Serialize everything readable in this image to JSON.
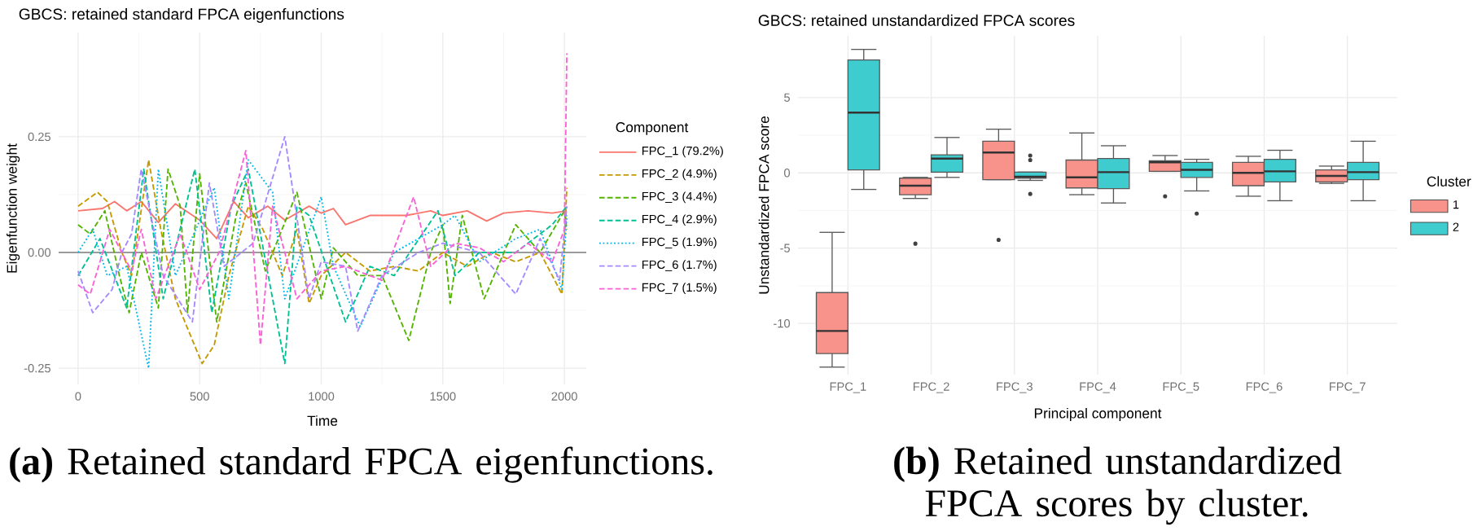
{
  "chart_data": [
    {
      "type": "line",
      "title": "GBCS: retained standard FPCA eigenfunctions",
      "xlabel": "Time",
      "ylabel": "Eigenfunction weight",
      "legend_title": "Component",
      "legend": "right",
      "grid": true,
      "xlim": [
        -80,
        2090
      ],
      "ylim": [
        -0.285,
        0.475
      ],
      "xticks": [
        0,
        500,
        1000,
        1500,
        2000
      ],
      "yticks": [
        -0.25,
        {
          "value": 0,
          "label": "0.00"
        },
        0.25
      ],
      "ref_lines": [
        {
          "axis": "y",
          "value": 0,
          "color": "#7F7F7F"
        }
      ],
      "annotations": [
        "**(a)** Retained standard FPCA eigenfunctions."
      ],
      "series": [
        {
          "name": "FPC_1 (79.2%)",
          "color": "#F8766D",
          "line_style": "solid",
          "x": [
            0,
            100,
            150,
            200,
            260,
            330,
            400,
            500,
            570,
            640,
            700,
            780,
            850,
            950,
            1000,
            1050,
            1100,
            1200,
            1350,
            1450,
            1500,
            1600,
            1680,
            1750,
            1850,
            1950,
            2010
          ],
          "values": [
            0.09,
            0.095,
            0.11,
            0.09,
            0.11,
            0.065,
            0.105,
            0.07,
            0.03,
            0.11,
            0.075,
            0.1,
            0.07,
            0.1,
            0.085,
            0.095,
            0.06,
            0.08,
            0.08,
            0.09,
            0.08,
            0.09,
            0.068,
            0.085,
            0.09,
            0.085,
            0.09
          ]
        },
        {
          "name": "FPC_2 (4.9%)",
          "color": "#C49A00",
          "line_style": "dashed",
          "x": [
            0,
            80,
            120,
            180,
            220,
            290,
            340,
            400,
            510,
            560,
            620,
            700,
            760,
            840,
            900,
            950,
            1000,
            1100,
            1200,
            1300,
            1400,
            1500,
            1600,
            1700,
            1800,
            1900,
            1990,
            2010
          ],
          "values": [
            0.1,
            0.13,
            0.11,
            0.0,
            -0.05,
            0.2,
            0.05,
            -0.1,
            -0.24,
            -0.2,
            -0.05,
            0.1,
            0.05,
            -0.05,
            0.05,
            -0.11,
            -0.05,
            0.0,
            -0.04,
            -0.03,
            -0.04,
            0.0,
            -0.03,
            0.0,
            -0.02,
            0.0,
            -0.09,
            0.14
          ]
        },
        {
          "name": "FPC_3 (4.4%)",
          "color": "#53B400",
          "line_style": "dashed",
          "x": [
            0,
            50,
            110,
            170,
            210,
            260,
            330,
            370,
            420,
            450,
            500,
            570,
            650,
            690,
            770,
            900,
            1000,
            1050,
            1150,
            1250,
            1360,
            1450,
            1500,
            1530,
            1580,
            1670,
            1800,
            1900,
            2000,
            2010
          ],
          "values": [
            0.06,
            0.04,
            0.09,
            -0.05,
            -0.13,
            0.0,
            -0.12,
            0.18,
            0.1,
            -0.13,
            0.17,
            -0.15,
            0.08,
            0.15,
            -0.04,
            0.13,
            -0.1,
            0.01,
            -0.05,
            -0.05,
            -0.19,
            0.0,
            0.06,
            -0.11,
            0.08,
            -0.1,
            0.06,
            0.0,
            0.09,
            0.05
          ]
        },
        {
          "name": "FPC_4 (2.9%)",
          "color": "#00C094",
          "line_style": "dashed",
          "x": [
            0,
            90,
            200,
            270,
            350,
            480,
            550,
            630,
            700,
            850,
            900,
            950,
            1100,
            1200,
            1300,
            1480,
            1550,
            1650,
            1800,
            1950,
            2010
          ],
          "values": [
            -0.05,
            0.03,
            -0.12,
            0.18,
            -0.1,
            0.18,
            -0.13,
            0.1,
            0.18,
            -0.24,
            0.1,
            0.08,
            -0.15,
            -0.03,
            -0.05,
            0.09,
            -0.05,
            0.0,
            0.0,
            0.06,
            0.1
          ]
        },
        {
          "name": "FPC_5 (1.9%)",
          "color": "#00B6EB",
          "line_style": "dotted",
          "x": [
            0,
            60,
            120,
            200,
            290,
            330,
            400,
            560,
            620,
            700,
            800,
            850,
            1000,
            1050,
            1160,
            1300,
            1400,
            1500,
            1550,
            1650,
            1800,
            1900,
            1990,
            2010
          ],
          "values": [
            0.0,
            0.05,
            -0.05,
            -0.03,
            -0.25,
            0.18,
            -0.05,
            0.14,
            -0.1,
            0.2,
            0.13,
            -0.1,
            0.12,
            -0.03,
            -0.16,
            0.0,
            0.03,
            0.06,
            0.08,
            -0.02,
            0.03,
            0.05,
            -0.08,
            0.08
          ]
        },
        {
          "name": "FPC_6 (1.7%)",
          "color": "#A58AFF",
          "line_style": "dashed",
          "x": [
            0,
            60,
            140,
            180,
            220,
            260,
            350,
            470,
            540,
            600,
            720,
            850,
            950,
            1000,
            1100,
            1150,
            1250,
            1400,
            1500,
            1650,
            1800,
            1900,
            1980,
            2010
          ],
          "values": [
            -0.04,
            -0.13,
            -0.08,
            0.0,
            0.04,
            0.18,
            -0.05,
            -0.15,
            0.15,
            -0.03,
            0.02,
            0.25,
            -0.1,
            -0.02,
            -0.03,
            -0.17,
            -0.05,
            0.0,
            0.02,
            0.0,
            -0.09,
            0.03,
            -0.06,
            0.1
          ]
        },
        {
          "name": "FPC_7 (1.5%)",
          "color": "#FB61D7",
          "line_style": "dashed",
          "x": [
            0,
            50,
            130,
            220,
            260,
            320,
            420,
            500,
            580,
            690,
            750,
            800,
            900,
            1000,
            1100,
            1250,
            1380,
            1450,
            1550,
            1650,
            1750,
            1850,
            1950,
            2000,
            2010
          ],
          "values": [
            -0.07,
            -0.09,
            0.05,
            -0.04,
            0.05,
            -0.1,
            0.04,
            -0.08,
            0.0,
            0.22,
            -0.2,
            0.1,
            -0.1,
            -0.04,
            -0.03,
            -0.06,
            0.12,
            -0.03,
            0.02,
            0.01,
            -0.02,
            0.02,
            -0.02,
            0.05,
            0.43
          ]
        }
      ]
    },
    {
      "type": "box",
      "title": "GBCS: retained unstandardized FPCA scores",
      "xlabel": "Principal component",
      "ylabel": "Unstandardized FPCA score",
      "legend_title": "Cluster",
      "legend": "right",
      "grid": true,
      "categories": [
        "FPC_1",
        "FPC_2",
        "FPC_3",
        "FPC_4",
        "FPC_5",
        "FPC_6",
        "FPC_7"
      ],
      "ylim": [
        -13.4,
        9.1
      ],
      "yticks": [
        -10,
        -5,
        0,
        5
      ],
      "annotations": [
        "**(b)** Retained unstandardized FPCA scores by cluster."
      ],
      "series": [
        {
          "name": "1",
          "color": "#F8938B",
          "boxes": [
            {
              "low": -12.9,
              "q1": -12.0,
              "median": -10.5,
              "q3": -7.95,
              "high": -3.95
            },
            {
              "low": -1.7,
              "q1": -1.45,
              "median": -0.85,
              "q3": -0.35,
              "high": -0.3,
              "outliers": [
                -4.7
              ]
            },
            {
              "low": -0.45,
              "q1": -0.45,
              "median": 1.35,
              "q3": 2.1,
              "high": 2.9,
              "outliers": [
                -4.45
              ]
            },
            {
              "low": -1.45,
              "q1": -1.0,
              "median": -0.3,
              "q3": 0.85,
              "high": 2.65
            },
            {
              "low": 0.1,
              "q1": 0.1,
              "median": 0.7,
              "q3": 0.8,
              "high": 1.15,
              "outliers": [
                -1.55
              ]
            },
            {
              "low": -1.55,
              "q1": -0.85,
              "median": 0.0,
              "q3": 0.7,
              "high": 1.1
            },
            {
              "low": -0.7,
              "q1": -0.6,
              "median": -0.2,
              "q3": 0.2,
              "high": 0.45
            }
          ]
        },
        {
          "name": "2",
          "color": "#3ECCCF",
          "boxes": [
            {
              "low": -1.1,
              "q1": 0.2,
              "median": 4.0,
              "q3": 7.5,
              "high": 8.2
            },
            {
              "low": -0.3,
              "q1": 0.05,
              "median": 0.95,
              "q3": 1.2,
              "high": 2.35
            },
            {
              "low": -0.5,
              "q1": -0.35,
              "median": -0.25,
              "q3": 0.05,
              "high": 0.05,
              "outliers": [
                1.15,
                0.85,
                -1.4
              ]
            },
            {
              "low": -2.0,
              "q1": -1.05,
              "median": 0.05,
              "q3": 0.95,
              "high": 1.8
            },
            {
              "low": -1.2,
              "q1": -0.3,
              "median": 0.2,
              "q3": 0.7,
              "high": 0.9,
              "outliers": [
                -2.7
              ]
            },
            {
              "low": -1.85,
              "q1": -0.6,
              "median": 0.1,
              "q3": 0.9,
              "high": 1.5
            },
            {
              "low": -1.85,
              "q1": -0.45,
              "median": 0.05,
              "q3": 0.7,
              "high": 2.1
            }
          ]
        }
      ]
    }
  ]
}
